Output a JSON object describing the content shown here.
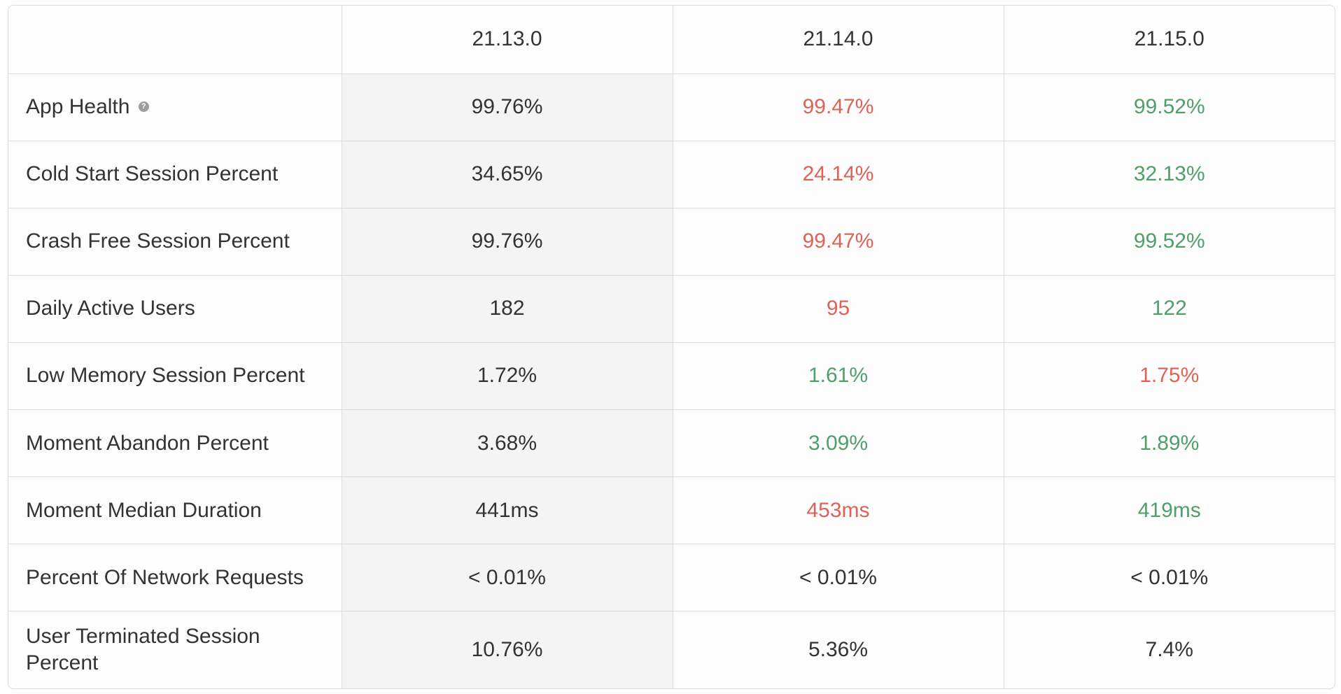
{
  "columns": [
    "",
    "21.13.0",
    "21.14.0",
    "21.15.0"
  ],
  "rows": [
    {
      "label": "App Health",
      "has_help_icon": true,
      "values": [
        {
          "text": "99.76%",
          "status": "neutral"
        },
        {
          "text": "99.47%",
          "status": "bad"
        },
        {
          "text": "99.52%",
          "status": "good"
        }
      ]
    },
    {
      "label": "Cold Start Session Percent",
      "values": [
        {
          "text": "34.65%",
          "status": "neutral"
        },
        {
          "text": "24.14%",
          "status": "bad"
        },
        {
          "text": "32.13%",
          "status": "good"
        }
      ]
    },
    {
      "label": "Crash Free Session Percent",
      "values": [
        {
          "text": "99.76%",
          "status": "neutral"
        },
        {
          "text": "99.47%",
          "status": "bad"
        },
        {
          "text": "99.52%",
          "status": "good"
        }
      ]
    },
    {
      "label": "Daily Active Users",
      "values": [
        {
          "text": "182",
          "status": "neutral"
        },
        {
          "text": "95",
          "status": "bad"
        },
        {
          "text": "122",
          "status": "good"
        }
      ]
    },
    {
      "label": "Low Memory Session Percent",
      "values": [
        {
          "text": "1.72%",
          "status": "neutral"
        },
        {
          "text": "1.61%",
          "status": "good"
        },
        {
          "text": "1.75%",
          "status": "bad"
        }
      ]
    },
    {
      "label": "Moment Abandon Percent",
      "values": [
        {
          "text": "3.68%",
          "status": "neutral"
        },
        {
          "text": "3.09%",
          "status": "good"
        },
        {
          "text": "1.89%",
          "status": "good"
        }
      ]
    },
    {
      "label": "Moment Median Duration",
      "values": [
        {
          "text": "441ms",
          "status": "neutral"
        },
        {
          "text": "453ms",
          "status": "bad"
        },
        {
          "text": "419ms",
          "status": "good"
        }
      ]
    },
    {
      "label": "Percent Of Network Requests",
      "values": [
        {
          "text": "< 0.01%",
          "status": "neutral"
        },
        {
          "text": "< 0.01%",
          "status": "neutral"
        },
        {
          "text": "< 0.01%",
          "status": "neutral"
        }
      ]
    },
    {
      "label": "User Terminated Session Percent",
      "values": [
        {
          "text": "10.76%",
          "status": "neutral"
        },
        {
          "text": "5.36%",
          "status": "neutral"
        },
        {
          "text": "7.4%",
          "status": "neutral"
        }
      ]
    }
  ],
  "help_icon_glyph": "?",
  "colors": {
    "neutral": "#333333",
    "bad": "#e06257",
    "good": "#4f9e6b",
    "baseline_bg": "#f4f4f4",
    "border": "#dcdcdc"
  },
  "icons": {
    "help": "question-circle-icon"
  }
}
